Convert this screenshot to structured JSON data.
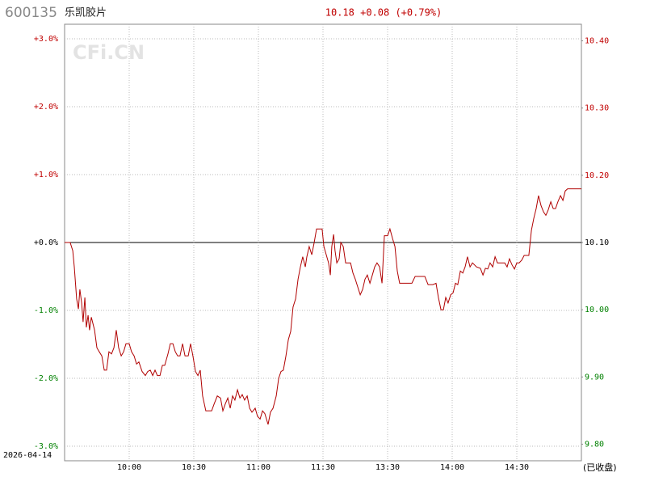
{
  "chart_data": {
    "type": "line",
    "code": "600135",
    "name": "乐凯胶片",
    "quote": "10.18 +0.08 (+0.79%)",
    "date": "2026-04-14",
    "status": "(已收盘)",
    "watermark": "CFi.CN",
    "up_color": "#c00000",
    "down_color": "#008000",
    "flat_color": "#000000",
    "grid": true,
    "xlim": [
      0,
      240
    ],
    "xticks": [
      {
        "value": 30,
        "label": "10:00"
      },
      {
        "value": 60,
        "label": "10:30"
      },
      {
        "value": 90,
        "label": "11:00"
      },
      {
        "value": 120,
        "label": "11:30"
      },
      {
        "value": 150,
        "label": "13:30"
      },
      {
        "value": 180,
        "label": "14:00"
      },
      {
        "value": 210,
        "label": "14:30"
      }
    ],
    "ylim": [
      -3,
      3
    ],
    "yticks": [
      {
        "value": 3,
        "label": "+3.0%"
      },
      {
        "value": 2,
        "label": "+2.0%"
      },
      {
        "value": 1,
        "label": "+1.0%"
      },
      {
        "value": 0,
        "label": "+0.0%"
      },
      {
        "value": -1,
        "label": "-1.0%"
      },
      {
        "value": -2,
        "label": "-2.0%"
      },
      {
        "value": -3,
        "label": "-3.0%"
      }
    ],
    "y2lim": [
      9.797,
      10.403
    ],
    "y2ticks": [
      {
        "value": 10.4,
        "label": "10.40"
      },
      {
        "value": 10.3,
        "label": "10.30"
      },
      {
        "value": 10.2,
        "label": "10.20"
      },
      {
        "value": 10.1,
        "label": "10.10"
      },
      {
        "value": 10.0,
        "label": "10.00"
      },
      {
        "value": 9.9,
        "label": "9.90"
      },
      {
        "value": 9.8,
        "label": "9.80"
      }
    ],
    "x": [
      0,
      1.5,
      2.6,
      3.8,
      4.5,
      5.6,
      6.4,
      7.1,
      7.9,
      8.6,
      9.4,
      10.1,
      10.9,
      11.6,
      12.4,
      13.9,
      15,
      16.1,
      17.3,
      18.4,
      19.5,
      20.6,
      21.8,
      22.9,
      24,
      25.1,
      26.3,
      27.4,
      28.5,
      30,
      31.1,
      32.3,
      33.4,
      34.5,
      36,
      37.5,
      38.6,
      39.8,
      40.9,
      42,
      43.1,
      44.3,
      45.4,
      46.5,
      48,
      49.1,
      50.3,
      51.4,
      52.5,
      53.6,
      54.8,
      55.9,
      57.4,
      58.5,
      59.6,
      60.8,
      61.9,
      63,
      64.1,
      65.6,
      68.3,
      69.4,
      70.9,
      72.4,
      73.5,
      74.6,
      75.8,
      76.9,
      78,
      79.1,
      80.3,
      81.4,
      82.5,
      83.6,
      84.8,
      85.9,
      87,
      88.5,
      89.6,
      90.8,
      91.9,
      93,
      94.5,
      95.6,
      96.8,
      98.3,
      99.4,
      100.5,
      101.6,
      102.8,
      103.9,
      105,
      106.1,
      107.3,
      108.4,
      109.5,
      110.6,
      111.8,
      112.5,
      113.6,
      114.8,
      115.9,
      117,
      118.5,
      119.6,
      120.4,
      121.5,
      122.6,
      123.4,
      124.1,
      124.9,
      125.6,
      126.4,
      127.5,
      128.3,
      129.4,
      130.5,
      131.6,
      132.8,
      133.9,
      135,
      136.1,
      137.3,
      138.4,
      139.5,
      140.6,
      141.8,
      142.9,
      144,
      145.1,
      146.3,
      147.4,
      148.5,
      150,
      151.1,
      152.3,
      153.4,
      154.5,
      155.6,
      157.5,
      161.3,
      162.8,
      165,
      167.3,
      168.8,
      171,
      172.5,
      173.6,
      174.8,
      175.9,
      177,
      178.1,
      179.3,
      180.4,
      181.5,
      182.6,
      183.8,
      184.9,
      186,
      187.1,
      188.3,
      189.4,
      191.3,
      193.1,
      194.3,
      195.4,
      196.5,
      197.6,
      198.8,
      199.9,
      201,
      202.9,
      204.4,
      205.5,
      206.6,
      207.8,
      208.9,
      210,
      211.1,
      212.3,
      213.4,
      214.5,
      215.6,
      216.8,
      217.9,
      219,
      220.1,
      221.3,
      222.4,
      223.5,
      224.6,
      225.8,
      226.9,
      228,
      229.1,
      230.3,
      231.4,
      232.5,
      233.6,
      236.3,
      240
    ],
    "series": [
      {
        "name": "乐凯胶片",
        "color": "#b00000",
        "values": [
          0,
          0,
          0,
          -0.12,
          -0.36,
          -0.83,
          -0.98,
          -0.69,
          -0.89,
          -1.17,
          -0.81,
          -1.25,
          -1.07,
          -1.29,
          -1.1,
          -1.29,
          -1.55,
          -1.61,
          -1.67,
          -1.88,
          -1.88,
          -1.61,
          -1.64,
          -1.55,
          -1.29,
          -1.55,
          -1.67,
          -1.61,
          -1.49,
          -1.49,
          -1.61,
          -1.67,
          -1.79,
          -1.76,
          -1.9,
          -1.96,
          -1.9,
          -1.88,
          -1.96,
          -1.88,
          -1.96,
          -1.96,
          -1.81,
          -1.81,
          -1.64,
          -1.49,
          -1.49,
          -1.61,
          -1.67,
          -1.67,
          -1.49,
          -1.67,
          -1.67,
          -1.49,
          -1.67,
          -1.9,
          -1.96,
          -1.88,
          -2.26,
          -2.48,
          -2.48,
          -2.38,
          -2.26,
          -2.29,
          -2.48,
          -2.38,
          -2.29,
          -2.44,
          -2.26,
          -2.32,
          -2.17,
          -2.29,
          -2.24,
          -2.32,
          -2.26,
          -2.44,
          -2.5,
          -2.44,
          -2.56,
          -2.6,
          -2.48,
          -2.52,
          -2.68,
          -2.5,
          -2.44,
          -2.26,
          -2.0,
          -1.9,
          -1.88,
          -1.67,
          -1.43,
          -1.31,
          -0.95,
          -0.83,
          -0.54,
          -0.36,
          -0.21,
          -0.36,
          -0.21,
          -0.06,
          -0.18,
          0,
          0.2,
          0.2,
          0.2,
          -0.06,
          -0.18,
          -0.3,
          -0.48,
          -0.06,
          0.12,
          -0.12,
          -0.3,
          -0.24,
          0,
          -0.06,
          -0.3,
          -0.3,
          -0.3,
          -0.45,
          -0.54,
          -0.65,
          -0.77,
          -0.69,
          -0.54,
          -0.48,
          -0.6,
          -0.48,
          -0.36,
          -0.3,
          -0.36,
          -0.6,
          0.1,
          0.1,
          0.2,
          0.06,
          -0.06,
          -0.42,
          -0.6,
          -0.6,
          -0.6,
          -0.5,
          -0.5,
          -0.5,
          -0.62,
          -0.62,
          -0.6,
          -0.81,
          -0.99,
          -0.99,
          -0.81,
          -0.89,
          -0.77,
          -0.74,
          -0.6,
          -0.62,
          -0.42,
          -0.45,
          -0.36,
          -0.21,
          -0.36,
          -0.3,
          -0.36,
          -0.38,
          -0.48,
          -0.38,
          -0.39,
          -0.3,
          -0.36,
          -0.21,
          -0.3,
          -0.3,
          -0.3,
          -0.36,
          -0.24,
          -0.33,
          -0.39,
          -0.3,
          -0.3,
          -0.26,
          -0.19,
          -0.19,
          -0.19,
          0.18,
          0.36,
          0.5,
          0.69,
          0.54,
          0.45,
          0.4,
          0.48,
          0.6,
          0.5,
          0.5,
          0.6,
          0.69,
          0.62,
          0.76,
          0.79,
          0.79,
          0.79
        ]
      }
    ]
  }
}
